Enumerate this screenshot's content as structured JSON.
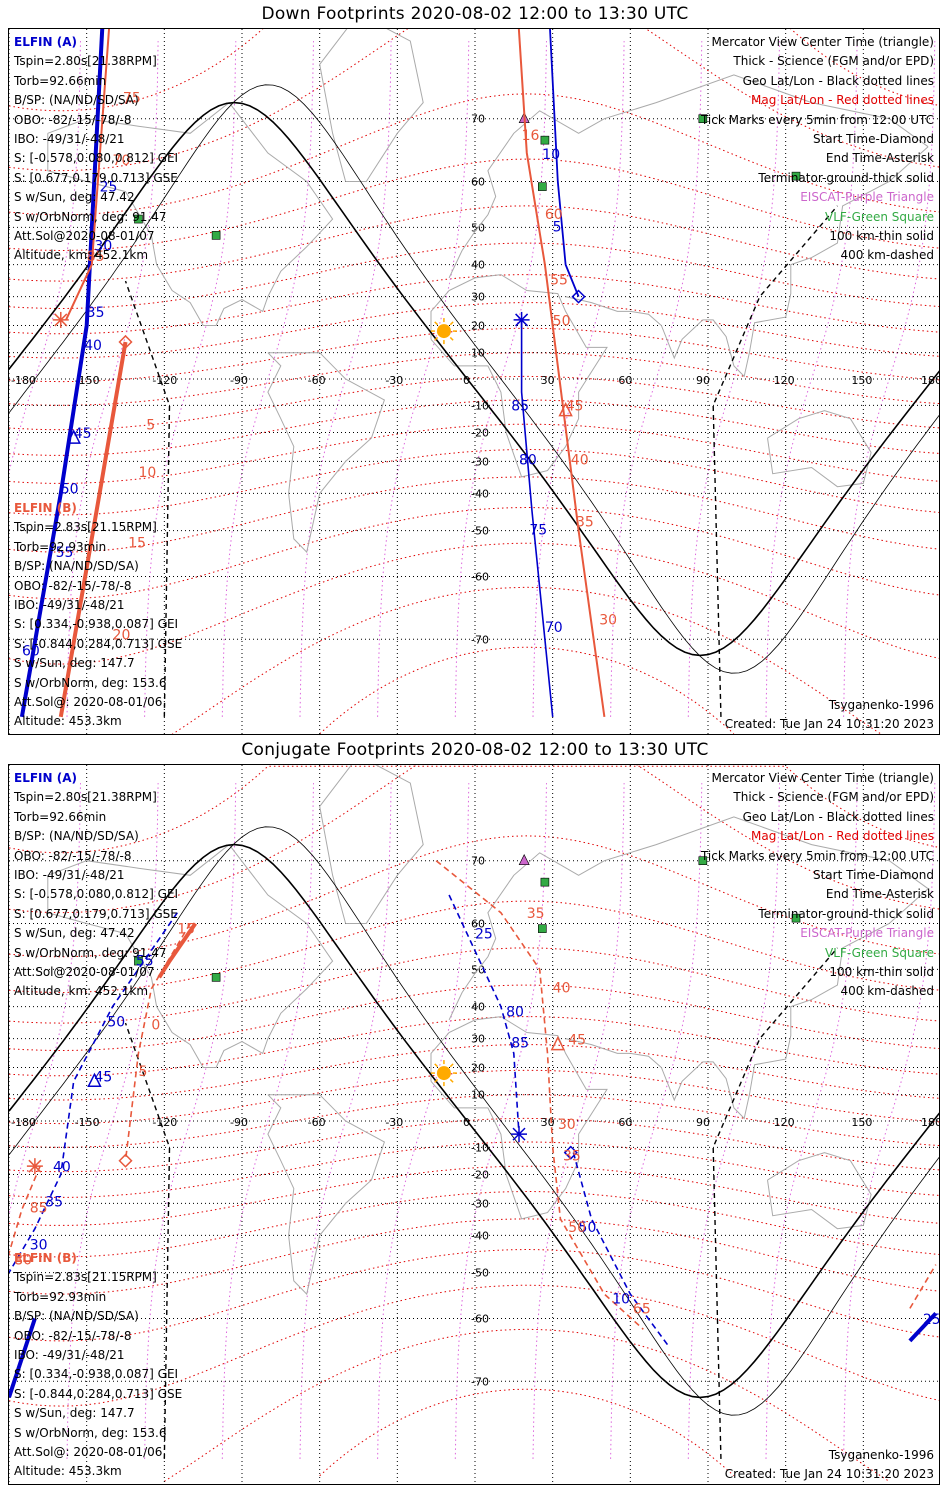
{
  "panels": [
    {
      "id": "down",
      "title": "Down Footprints 2020-08-02 12:00 to 13:30 UTC",
      "elfin_a": {
        "label": "ELFIN (A)",
        "lines": [
          "Tspin=2.80s[21.38RPM]",
          "Torb=92.66min",
          "B/SP: (NA/ND/SD/SA)",
          "OBO: -82/-15/-78/-8",
          "IBO: -49/31/-48/21",
          "S: [-0.578,0.080,0.812] GEI",
          "S: [0.677,0.179,0.713] GSE",
          "S w/Sun, deg: 47.42",
          "S w/OrbNorm, deg: 91.47",
          "Att.Sol@2020-08-01/07",
          "Altitude, km: 452.1km"
        ]
      },
      "elfin_b": {
        "label": "ELFIN (B)",
        "lines": [
          "Tspin=2.83s[21.15RPM]",
          "Torb=92.93min",
          "B/SP: (NA/ND/SD/SA)",
          "OBO: -82/-15/-78/-8",
          "IBO: -49/31/-48/21",
          "S: [0.334,-0.938,0.087] GEI",
          "S: [-0.844,0.284,0.713] GSE",
          "S w/Sun, deg: 147.7",
          "S w/OrbNorm, deg: 153.6",
          "Att.Sol@: 2020-08-01/06",
          "Altitude: 453.3km"
        ]
      },
      "legend": [
        {
          "text": "Mercator View Center Time (triangle)",
          "color": "#000000"
        },
        {
          "text": "Thick - Science (FGM and/or EPD)",
          "color": "#000000"
        },
        {
          "text": "Geo Lat/Lon - Black dotted lines",
          "color": "#000000"
        },
        {
          "text": "Mag Lat/Lon - Red dotted lines",
          "color": "#e00000"
        },
        {
          "text": "Tick Marks every 5min from 12:00 UTC",
          "color": "#000000"
        },
        {
          "text": "Start Time-Diamond",
          "color": "#000000"
        },
        {
          "text": "End Time-Asterisk",
          "color": "#000000"
        },
        {
          "text": "Terminator-ground-thick solid",
          "color": "#000000"
        },
        {
          "text": "EISCAT-Purple Triangle",
          "color": "#cc66cc"
        },
        {
          "text": "VLF-Green Square",
          "color": "#33aa44"
        },
        {
          "text": "100 km-thin solid",
          "color": "#000000"
        },
        {
          "text": "400 km-dashed",
          "color": "#000000"
        }
      ],
      "model": "Tsyganenko-1996",
      "created": "Created: Tue Jan 24 10:31:20 2023",
      "lon_labels": [
        "-180",
        "-150",
        "-120",
        "-90",
        "-60",
        "-30",
        "0",
        "30",
        "60",
        "90",
        "120",
        "150",
        "180"
      ],
      "lat_labels": [
        "70",
        "60",
        "50",
        "40",
        "30",
        "20",
        "10",
        "0",
        "-10",
        "-20",
        "-30",
        "-40",
        "-50",
        "-60",
        "-70"
      ],
      "track_a_labels": [
        {
          "text": "5",
          "lon": 30,
          "lat": 49
        },
        {
          "text": "10",
          "lon": 26,
          "lat": 64
        },
        {
          "text": "85",
          "lon": 14,
          "lat": -12
        },
        {
          "text": "80",
          "lon": 17,
          "lat": -31
        },
        {
          "text": "75",
          "lon": 21,
          "lat": -51
        },
        {
          "text": "70",
          "lon": 27,
          "lat": -69
        },
        {
          "text": "30",
          "lon": -147,
          "lat": 44
        },
        {
          "text": "35",
          "lon": -150,
          "lat": 23
        },
        {
          "text": "40",
          "lon": -151,
          "lat": 11
        },
        {
          "text": "45",
          "lon": -155,
          "lat": -22
        },
        {
          "text": "50",
          "lon": -160,
          "lat": -40
        },
        {
          "text": "55",
          "lon": -162,
          "lat": -56
        },
        {
          "text": "60",
          "lon": -175,
          "lat": -72
        },
        {
          "text": "25",
          "lon": -145,
          "lat": 58
        }
      ],
      "track_b_labels": [
        {
          "text": "60",
          "lon": 27,
          "lat": 52
        },
        {
          "text": "55",
          "lon": 29,
          "lat": 34
        },
        {
          "text": "50",
          "lon": 30,
          "lat": 20
        },
        {
          "text": "45",
          "lon": 35,
          "lat": -12
        },
        {
          "text": "40",
          "lon": 37,
          "lat": -31
        },
        {
          "text": "35",
          "lon": 39,
          "lat": -49
        },
        {
          "text": "30",
          "lon": 48,
          "lat": -68
        },
        {
          "text": "16",
          "lon": 18,
          "lat": 67
        },
        {
          "text": "75",
          "lon": -136,
          "lat": 72
        },
        {
          "text": "70",
          "lon": -140,
          "lat": 63
        },
        {
          "text": "85",
          "lon": -150,
          "lat": 41
        },
        {
          "text": "5",
          "lon": -127,
          "lat": -19
        },
        {
          "text": "10",
          "lon": -130,
          "lat": -35
        },
        {
          "text": "15",
          "lon": -134,
          "lat": -54
        },
        {
          "text": "20",
          "lon": -140,
          "lat": -70
        }
      ]
    },
    {
      "id": "conjugate",
      "title": "Conjugate Footprints 2020-08-02 12:00 to 13:30 UTC",
      "elfin_a": {
        "label": "ELFIN (A)",
        "lines": [
          "Tspin=2.80s[21.38RPM]",
          "Torb=92.66min",
          "B/SP: (NA/ND/SD/SA)",
          "OBO: -82/-15/-78/-8",
          "IBO: -49/31/-48/21",
          "S: [-0.578,0.080,0.812] GEI",
          "S: [0.677,0.179,0.713] GSE",
          "S w/Sun, deg: 47.42",
          "S w/OrbNorm, deg: 91.47",
          "Att.Sol@2020-08-01/07",
          "Altitude, km: 452.1km"
        ]
      },
      "elfin_b": {
        "label": "ELFIN (B)",
        "lines": [
          "Tspin=2.83s[21.15RPM]",
          "Torb=92.93min",
          "B/SP: (NA/ND/SD/SA)",
          "OBO: -82/-15/-78/-8",
          "IBO: -49/31/-48/21",
          "S: [0.334,-0.938,0.087] GEI",
          "S: [-0.844,0.284,0.713] GSE",
          "S w/Sun, deg: 147.7",
          "S w/OrbNorm, deg: 153.6",
          "Att.Sol@: 2020-08-01/06",
          "Altitude: 453.3km"
        ]
      },
      "legend": [
        {
          "text": "Mercator View Center Time (triangle)",
          "color": "#000000"
        },
        {
          "text": "Thick - Science (FGM and/or EPD)",
          "color": "#000000"
        },
        {
          "text": "Geo Lat/Lon - Black dotted lines",
          "color": "#000000"
        },
        {
          "text": "Mag Lat/Lon - Red dotted lines",
          "color": "#e00000"
        },
        {
          "text": "Tick Marks every 5min from 12:00 UTC",
          "color": "#000000"
        },
        {
          "text": "Start Time-Diamond",
          "color": "#000000"
        },
        {
          "text": "End Time-Asterisk",
          "color": "#000000"
        },
        {
          "text": "Terminator-ground-thick solid",
          "color": "#000000"
        },
        {
          "text": "EISCAT-Purple Triangle",
          "color": "#cc66cc"
        },
        {
          "text": "VLF-Green Square",
          "color": "#33aa44"
        },
        {
          "text": "100 km-thin solid",
          "color": "#000000"
        },
        {
          "text": "400 km-dashed",
          "color": "#000000"
        }
      ],
      "model": "Tsyganenko-1996",
      "created": "Created: Tue Jan 24 10:31:20 2023",
      "lon_labels": [
        "-180",
        "-150",
        "-120",
        "-90",
        "-60",
        "-30",
        "0",
        "30",
        "60",
        "90",
        "120",
        "150",
        "180"
      ],
      "lat_labels": [
        "70",
        "60",
        "50",
        "40",
        "30",
        "20",
        "10",
        "0",
        "-10",
        "-20",
        "-30",
        "-40",
        "-50",
        "-60",
        "-70"
      ],
      "track_a_labels": [
        {
          "text": "25",
          "lon": 0,
          "lat": 57
        },
        {
          "text": "80",
          "lon": 12,
          "lat": 37
        },
        {
          "text": "85",
          "lon": 14,
          "lat": 27
        },
        {
          "text": "50",
          "lon": -142,
          "lat": 34
        },
        {
          "text": "55",
          "lon": -131,
          "lat": 51
        },
        {
          "text": "45",
          "lon": -147,
          "lat": 15
        },
        {
          "text": "40",
          "lon": -163,
          "lat": -19
        },
        {
          "text": "35",
          "lon": -166,
          "lat": -31
        },
        {
          "text": "30",
          "lon": -172,
          "lat": -44
        },
        {
          "text": "50",
          "lon": 40,
          "lat": -39
        },
        {
          "text": "10",
          "lon": 53,
          "lat": -57
        },
        {
          "text": "25",
          "lon": 173,
          "lat": -61
        }
      ],
      "track_b_labels": [
        {
          "text": "35",
          "lon": 20,
          "lat": 61
        },
        {
          "text": "40",
          "lon": 30,
          "lat": 44
        },
        {
          "text": "45",
          "lon": 36,
          "lat": 28
        },
        {
          "text": "30",
          "lon": 32,
          "lat": -3
        },
        {
          "text": "35",
          "lon": 34,
          "lat": -15
        },
        {
          "text": "50",
          "lon": 36,
          "lat": -39
        },
        {
          "text": "65",
          "lon": 61,
          "lat": -59
        },
        {
          "text": "15",
          "lon": -115,
          "lat": 58
        },
        {
          "text": "0",
          "lon": -125,
          "lat": 33
        },
        {
          "text": "5",
          "lon": -130,
          "lat": 17
        },
        {
          "text": "85",
          "lon": -172,
          "lat": -33
        },
        {
          "text": "80",
          "lon": -178,
          "lat": -48
        }
      ]
    }
  ],
  "markers": {
    "eiscat_color": "#cc66cc",
    "vlf_color": "#33aa44",
    "track_a_color": "#0000cc",
    "track_b_color": "#e8583c",
    "mag_grid_color": "#e00000",
    "geo_grid_color": "#000000",
    "coast_color": "#aaaaaa",
    "sun_color": "#ffaa00"
  }
}
